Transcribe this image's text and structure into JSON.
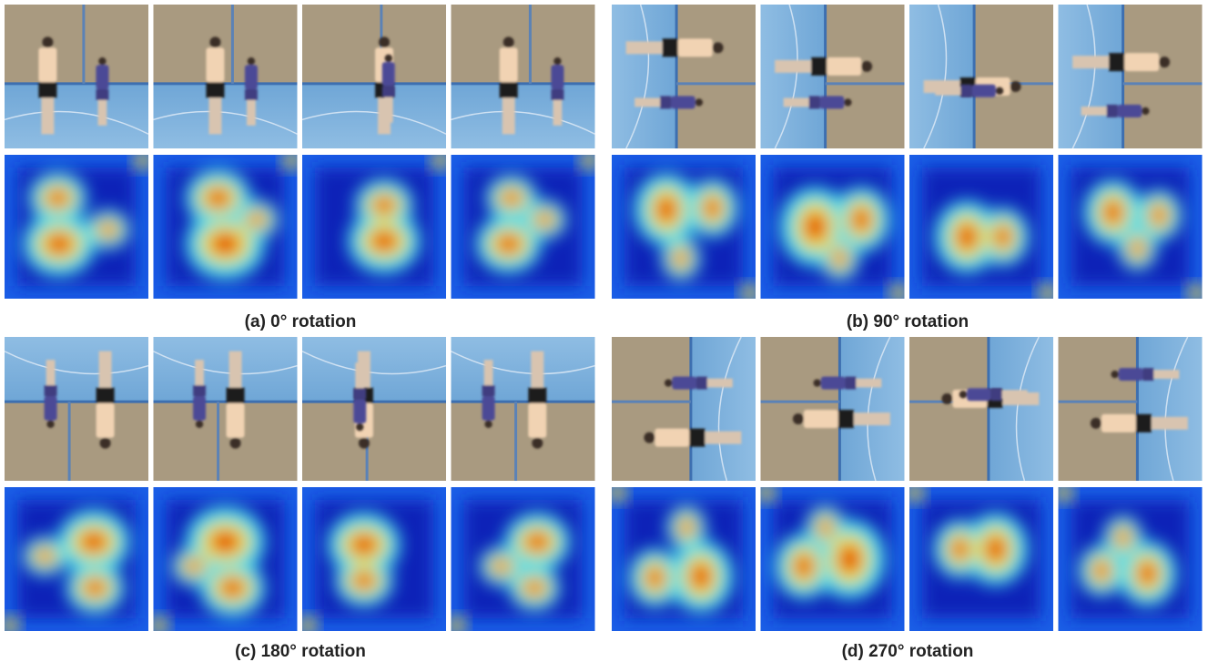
{
  "panels": [
    {
      "caption": "(a) 0° rotation"
    },
    {
      "caption": "(b) 90° rotation"
    },
    {
      "caption": "(c) 180° rotation"
    },
    {
      "caption": "(d) 270° rotation"
    }
  ]
}
